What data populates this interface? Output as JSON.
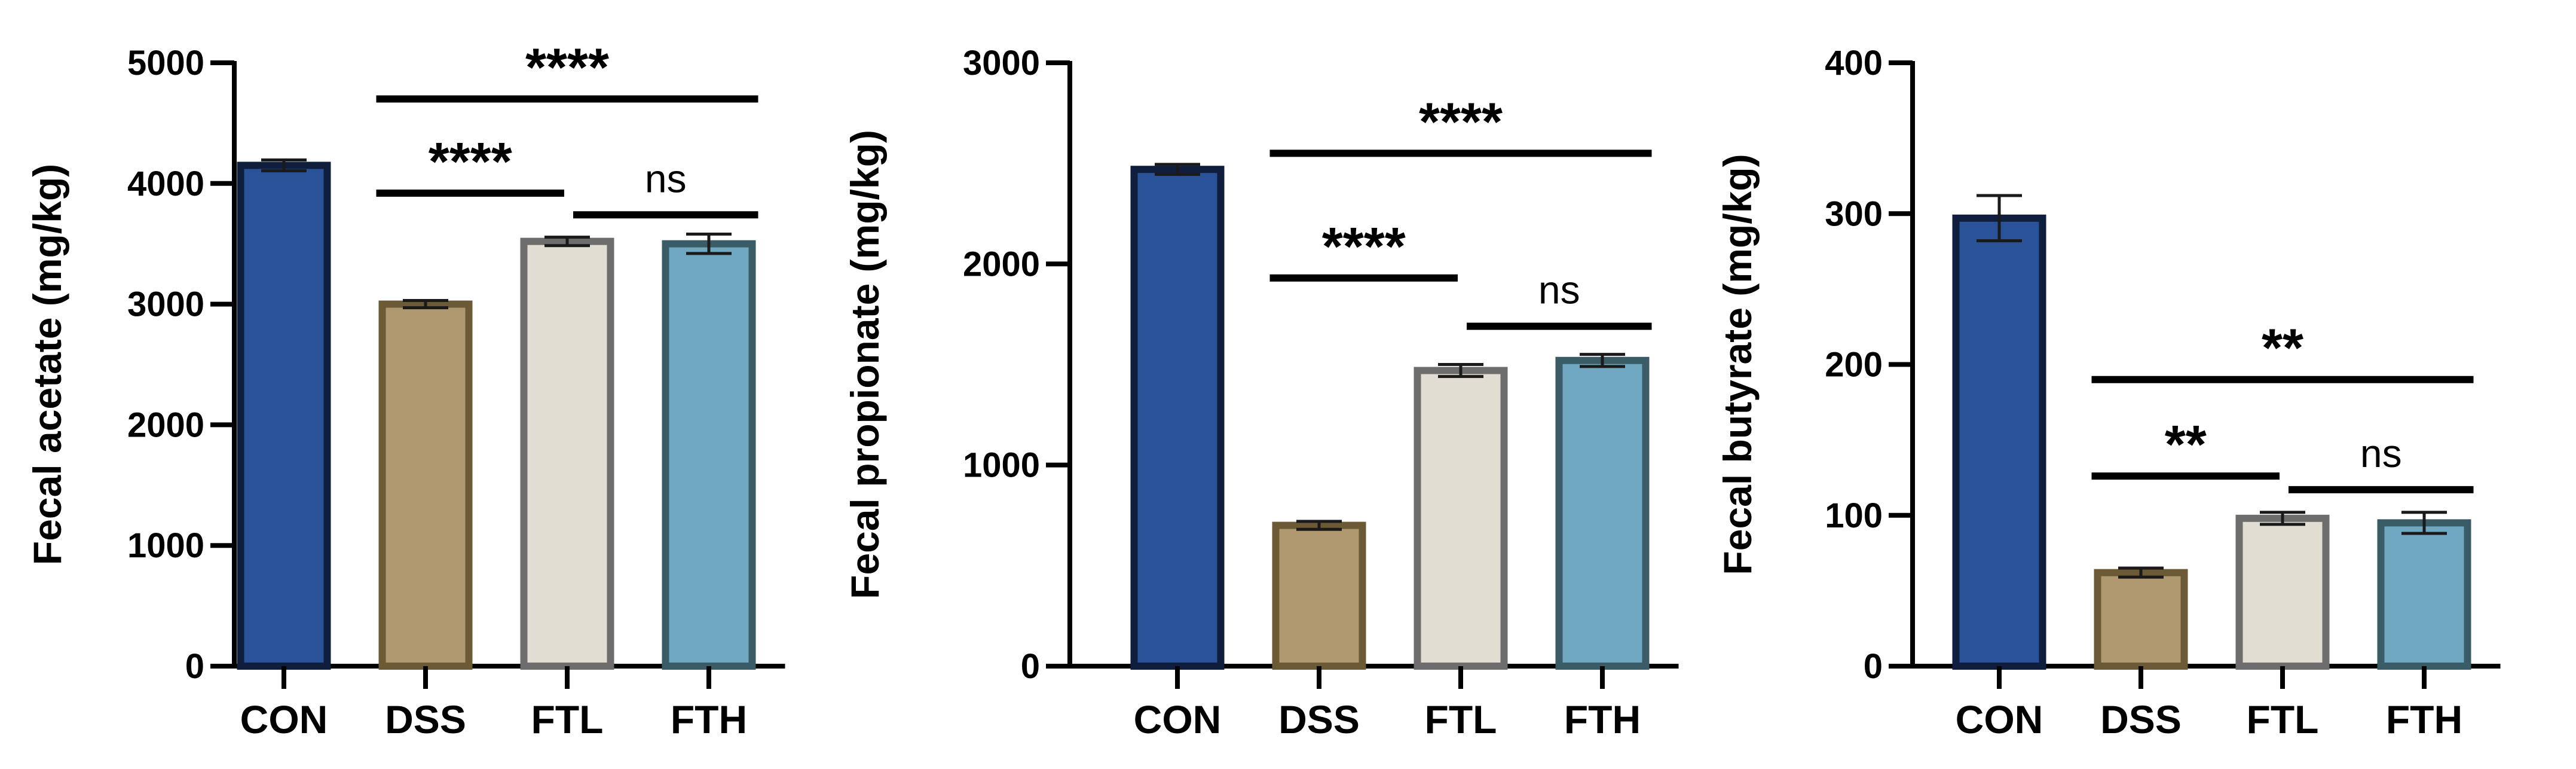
{
  "chart_data": [
    {
      "type": "bar",
      "ylabel": "Fecal acetate (mg/kg)",
      "categories": [
        "CON",
        "DSS",
        "FTL",
        "FTH"
      ],
      "values": [
        4150,
        3000,
        3520,
        3500
      ],
      "errors": [
        45,
        30,
        35,
        80
      ],
      "ylim": [
        0,
        5000
      ],
      "yticks": [
        0,
        1000,
        2000,
        3000,
        4000,
        5000
      ],
      "yticklabels": [
        "0",
        "1000",
        "2000",
        "3000",
        "4000",
        "5000"
      ],
      "comparisons": [
        {
          "from": 1,
          "to": 3,
          "label": "****",
          "style": "stars",
          "y": 4700
        },
        {
          "from": 1,
          "to": 2,
          "label": "****",
          "style": "stars",
          "y": 3920
        },
        {
          "from": 2,
          "to": 3,
          "label": "ns",
          "style": "ns",
          "y": 3740
        }
      ]
    },
    {
      "type": "bar",
      "ylabel": "Fecal propionate (mg/kg)",
      "categories": [
        "CON",
        "DSS",
        "FTL",
        "FTH"
      ],
      "values": [
        2470,
        700,
        1470,
        1520
      ],
      "errors": [
        25,
        20,
        30,
        30
      ],
      "ylim": [
        0,
        3000
      ],
      "yticks": [
        0,
        1000,
        2000,
        3000
      ],
      "yticklabels": [
        "0",
        "1000",
        "2000",
        "3000"
      ],
      "comparisons": [
        {
          "from": 1,
          "to": 3,
          "label": "****",
          "style": "stars",
          "y": 2550
        },
        {
          "from": 1,
          "to": 2,
          "label": "****",
          "style": "stars",
          "y": 1930
        },
        {
          "from": 2,
          "to": 3,
          "label": "ns",
          "style": "ns",
          "y": 1690
        }
      ]
    },
    {
      "type": "bar",
      "ylabel": "Fecal butyrate (mg/kg)",
      "categories": [
        "CON",
        "DSS",
        "FTL",
        "FTH"
      ],
      "values": [
        297,
        62,
        98,
        95
      ],
      "errors": [
        15,
        3,
        4,
        7
      ],
      "ylim": [
        0,
        400
      ],
      "yticks": [
        0,
        100,
        200,
        300,
        400
      ],
      "yticklabels": [
        "0",
        "100",
        "200",
        "300",
        "400"
      ],
      "comparisons": [
        {
          "from": 1,
          "to": 3,
          "label": "**",
          "style": "stars",
          "y": 190
        },
        {
          "from": 1,
          "to": 2,
          "label": "**",
          "style": "stars",
          "y": 126
        },
        {
          "from": 2,
          "to": 3,
          "label": "ns",
          "style": "ns",
          "y": 117
        }
      ]
    }
  ],
  "colors": {
    "CON": {
      "fill": "#2a5298",
      "stroke": "#0f1e3d"
    },
    "DSS": {
      "fill": "#b09870",
      "stroke": "#6b5a35"
    },
    "FTL": {
      "fill": "#e2ddd2",
      "stroke": "#6d6d6d"
    },
    "FTH": {
      "fill": "#6fa8c0",
      "stroke": "#3a5c66"
    }
  }
}
